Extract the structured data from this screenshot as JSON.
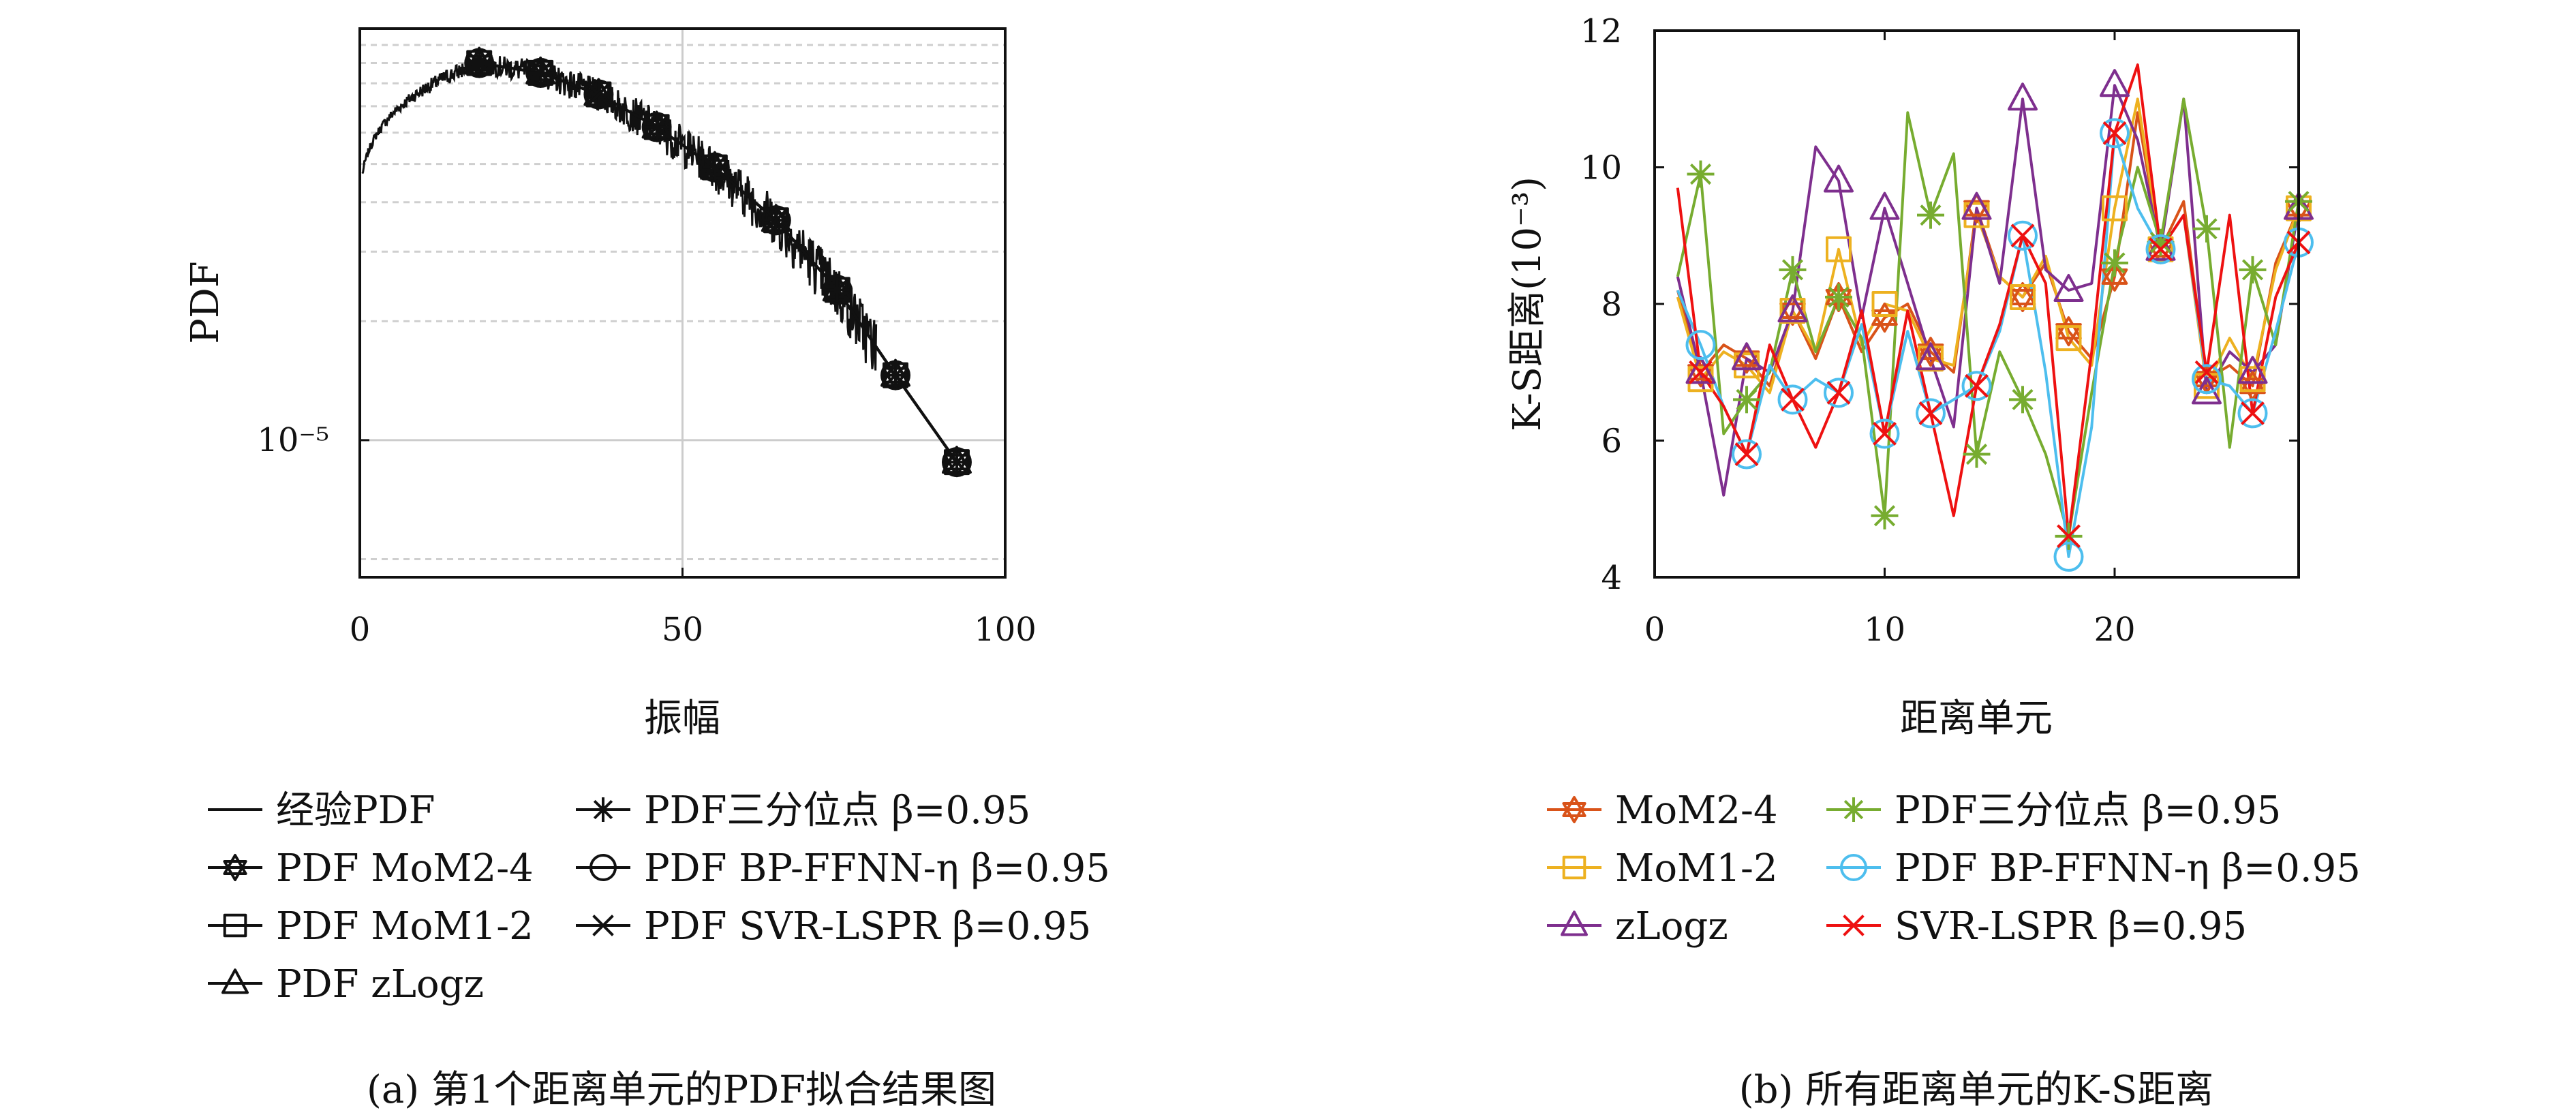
{
  "chart_data": [
    {
      "id": "a",
      "type": "line",
      "caption": "(a) 第1个距离单元的PDF拟合结果图",
      "xlabel": "振幅",
      "ylabel": "PDF",
      "xlim": [
        0,
        100
      ],
      "xticks": [
        "0",
        "50",
        "100"
      ],
      "yscale": "log",
      "ylim": [
        4.5e-06,
        0.00011
      ],
      "ytick_labels": [
        {
          "value": 1e-05,
          "label": "10⁻⁵"
        }
      ],
      "grid": true,
      "legend_position": "bottom",
      "legend": [
        "经验PDF",
        "PDF MoM2-4",
        "PDF MoM1-2",
        "PDF zLogz",
        "PDF三分位点 β=0.95",
        "PDF BP-FFNN-η β=0.95",
        "PDF SVR-LSPR β=0.95"
      ],
      "series": [
        {
          "name": "PDF MoM2-4",
          "marker": "star6",
          "x": [
            18.5,
            28,
            37,
            46,
            55,
            64.5,
            74,
            83,
            92.5
          ],
          "y": [
            9e-05,
            8.5e-05,
            7.5e-05,
            6.2e-05,
            4.9e-05,
            3.6e-05,
            2.4e-05,
            1.46e-05,
            8.8e-06
          ]
        },
        {
          "name": "PDF MoM1-2",
          "marker": "square",
          "x": [
            18.5,
            28,
            37,
            46,
            55,
            64.5,
            74,
            83,
            92.5
          ],
          "y": [
            9e-05,
            8.5e-05,
            7.5e-05,
            6.2e-05,
            4.9e-05,
            3.6e-05,
            2.4e-05,
            1.46e-05,
            8.8e-06
          ]
        },
        {
          "name": "PDF zLogz",
          "marker": "triangle",
          "x": [
            18.5,
            28,
            37,
            46,
            55,
            64.5,
            74,
            83,
            92.5
          ],
          "y": [
            9e-05,
            8.5e-05,
            7.5e-05,
            6.2e-05,
            4.9e-05,
            3.6e-05,
            2.4e-05,
            1.46e-05,
            8.8e-06
          ]
        },
        {
          "name": "PDF三分位点 β=0.95",
          "marker": "asterisk",
          "x": [
            18.5,
            28,
            37,
            46,
            55,
            64.5,
            74,
            83,
            92.5
          ],
          "y": [
            9e-05,
            8.5e-05,
            7.5e-05,
            6.2e-05,
            4.9e-05,
            3.6e-05,
            2.4e-05,
            1.46e-05,
            8.8e-06
          ]
        },
        {
          "name": "PDF BP-FFNN-η β=0.95",
          "marker": "circle",
          "x": [
            18.5,
            28,
            37,
            46,
            55,
            64.5,
            74,
            83,
            92.5
          ],
          "y": [
            9e-05,
            8.5e-05,
            7.5e-05,
            6.2e-05,
            4.9e-05,
            3.6e-05,
            2.4e-05,
            1.46e-05,
            8.8e-06
          ]
        },
        {
          "name": "PDF SVR-LSPR β=0.95",
          "marker": "x",
          "x": [
            18.5,
            28,
            37,
            46,
            55,
            64.5,
            74,
            83,
            92.5
          ],
          "y": [
            9e-05,
            8.5e-05,
            7.5e-05,
            6.2e-05,
            4.9e-05,
            3.6e-05,
            2.4e-05,
            1.46e-05,
            8.8e-06
          ]
        }
      ]
    },
    {
      "id": "b",
      "type": "line",
      "caption": "(b) 所有距离单元的K-S距离",
      "xlabel": "距离单元",
      "ylabel": "K-S距离(10⁻³)",
      "xlim": [
        0,
        28
      ],
      "xticks": [
        0,
        10,
        20
      ],
      "ylim": [
        4,
        12
      ],
      "yticks": [
        4,
        6,
        8,
        10,
        12
      ],
      "grid": false,
      "legend_position": "bottom",
      "x": [
        1,
        2,
        3,
        4,
        5,
        6,
        7,
        8,
        9,
        10,
        11,
        12,
        13,
        14,
        15,
        16,
        17,
        18,
        19,
        20,
        21,
        22,
        23,
        24,
        25,
        26,
        27,
        28
      ],
      "marker_x": [
        2,
        4,
        6,
        8,
        10,
        12,
        14,
        16,
        18,
        20,
        22,
        24,
        26,
        28
      ],
      "series": [
        {
          "name": "MoM2-4",
          "color": "#d95319",
          "marker": "star6",
          "values": [
            8.2,
            7.0,
            7.4,
            7.2,
            6.8,
            7.9,
            7.2,
            8.1,
            7.3,
            7.8,
            8.0,
            7.3,
            7.0,
            9.4,
            8.4,
            8.1,
            8.6,
            7.6,
            7.2,
            8.4,
            10.8,
            8.8,
            9.5,
            6.9,
            7.1,
            6.8,
            8.6,
            9.4
          ]
        },
        {
          "name": "MoM1-2",
          "color": "#edb120",
          "marker": "square",
          "values": [
            8.1,
            6.9,
            7.3,
            7.1,
            6.7,
            7.9,
            7.3,
            8.8,
            7.4,
            8.0,
            7.9,
            7.2,
            7.1,
            9.3,
            8.4,
            8.1,
            8.7,
            7.5,
            7.1,
            9.4,
            11.0,
            8.8,
            9.3,
            6.8,
            7.5,
            6.9,
            8.5,
            9.4
          ]
        },
        {
          "name": "zLogz",
          "color": "#7e2f8e",
          "marker": "triangle",
          "values": [
            8.4,
            7.0,
            5.2,
            7.2,
            7.0,
            7.9,
            10.3,
            9.8,
            7.8,
            9.4,
            8.3,
            7.2,
            6.2,
            9.4,
            8.3,
            11.0,
            8.5,
            8.2,
            8.3,
            11.2,
            10.4,
            8.8,
            11.0,
            6.7,
            7.3,
            7.0,
            7.4,
            9.4
          ]
        },
        {
          "name": "PDF三分位点 β=0.95",
          "color": "#77ac30",
          "marker": "asterisk",
          "values": [
            8.4,
            9.9,
            6.1,
            6.6,
            7.0,
            8.5,
            7.3,
            8.1,
            7.5,
            4.9,
            10.8,
            9.3,
            10.2,
            5.8,
            7.3,
            6.6,
            5.8,
            4.6,
            6.7,
            8.6,
            10.0,
            8.9,
            11.0,
            9.1,
            5.9,
            8.5,
            7.4,
            9.5
          ]
        },
        {
          "name": "PDF BP-FFNN-η β=0.95",
          "color": "#4dbeee",
          "marker": "circle",
          "values": [
            8.2,
            7.4,
            6.5,
            5.8,
            7.1,
            6.6,
            6.9,
            6.7,
            7.7,
            6.1,
            7.6,
            6.4,
            6.6,
            6.8,
            7.6,
            9.0,
            7.0,
            4.3,
            6.2,
            10.5,
            9.4,
            8.8,
            9.3,
            6.9,
            6.8,
            6.4,
            7.6,
            8.9
          ]
        },
        {
          "name": "SVR-LSPR β=0.95",
          "color": "#ee1111",
          "marker": "x",
          "values": [
            9.7,
            7.0,
            6.5,
            5.8,
            7.4,
            6.6,
            5.9,
            6.7,
            7.9,
            6.1,
            7.9,
            6.4,
            4.9,
            6.8,
            7.7,
            9.0,
            8.3,
            4.6,
            7.3,
            10.5,
            11.5,
            8.8,
            9.3,
            7.0,
            9.3,
            6.4,
            8.1,
            8.9
          ]
        }
      ]
    }
  ]
}
